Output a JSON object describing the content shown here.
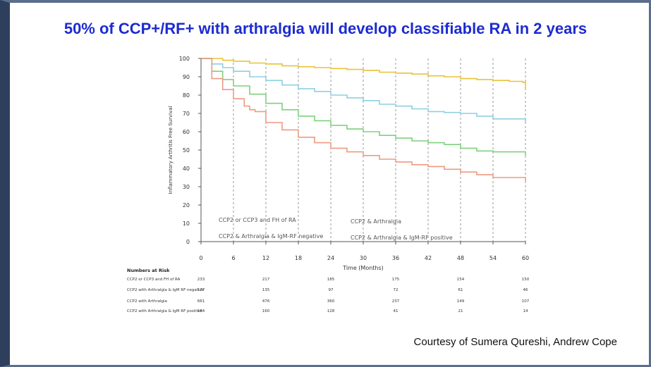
{
  "slide": {
    "title": "50% of CCP+/RF+ with arthralgia will develop classifiable RA in 2 years",
    "credit": "Courtesy of Sumera Qureshi, Andrew Cope"
  },
  "chart_data": {
    "type": "line",
    "title": "",
    "xlabel": "Time (Months)",
    "ylabel": "Inflammatory Arthritis Free Survival",
    "xlim": [
      0,
      60
    ],
    "ylim": [
      0,
      100
    ],
    "x_ticks": [
      0,
      6,
      12,
      18,
      24,
      30,
      36,
      42,
      48,
      54,
      60
    ],
    "x_tick_labels": [
      "0",
      "6",
      "12",
      "18",
      "24",
      "30",
      "36",
      "42",
      "48",
      "54",
      "60"
    ],
    "y_ticks": [
      0,
      10,
      20,
      30,
      40,
      50,
      60,
      70,
      80,
      90,
      100
    ],
    "y_tick_labels": [
      "0",
      "10",
      "20",
      "30",
      "40",
      "50",
      "60",
      "70",
      "80",
      "90",
      "100"
    ],
    "grid": "vertical dashed",
    "legend_position": "bottom-inside",
    "series": [
      {
        "name": "CCP2 or CCP3 and FH of RA",
        "color": "#e8c23a",
        "x": [
          0,
          2,
          4,
          6,
          9,
          12,
          15,
          18,
          21,
          24,
          27,
          30,
          33,
          36,
          39,
          42,
          45,
          48,
          51,
          54,
          57,
          59.5,
          60
        ],
        "y": [
          100,
          100,
          99,
          98.5,
          97.5,
          97,
          96,
          95.5,
          95,
          94.5,
          94,
          93.5,
          92.5,
          92,
          91.5,
          90.5,
          90,
          89,
          88.5,
          88,
          87.5,
          87,
          83
        ]
      },
      {
        "name": "CCP2 & Arthralgia",
        "color": "#8fcfe0",
        "x": [
          0,
          2,
          4,
          6,
          9,
          12,
          15,
          18,
          21,
          24,
          27,
          30,
          33,
          36,
          39,
          42,
          45,
          48,
          51,
          54,
          57,
          60
        ],
        "y": [
          100,
          97,
          95,
          93,
          90,
          88,
          85.5,
          83.5,
          82,
          80,
          78.5,
          77,
          75,
          74,
          72.5,
          71,
          70.5,
          70,
          68.5,
          67,
          67,
          65
        ]
      },
      {
        "name": "CCP2 & Arthralgia & IgM-RF negative",
        "color": "#7fd07f",
        "x": [
          0,
          2,
          4,
          6,
          9,
          12,
          15,
          18,
          21,
          24,
          27,
          30,
          33,
          36,
          39,
          42,
          45,
          48,
          51,
          54,
          57,
          60
        ],
        "y": [
          100,
          93,
          88.5,
          85,
          80.5,
          75.5,
          72,
          68.5,
          66,
          63.5,
          61.5,
          60,
          58,
          56.5,
          55,
          54,
          53,
          51,
          49.5,
          49,
          49,
          47
        ]
      },
      {
        "name": "CCP2 & Arthralgia & IgM-RF positive",
        "color": "#ee9a80",
        "x": [
          0,
          2,
          4,
          6,
          8,
          9,
          10,
          12,
          15,
          18,
          21,
          24,
          27,
          30,
          33,
          36,
          39,
          42,
          45,
          48,
          51,
          54,
          57,
          60
        ],
        "y": [
          100,
          89,
          83,
          78,
          74,
          72,
          71,
          65,
          61,
          57,
          54,
          51,
          49,
          47,
          45,
          43.5,
          42,
          41,
          39.5,
          38,
          36.5,
          35,
          35,
          33
        ]
      }
    ],
    "numbers_at_risk": {
      "heading": "Numbers at Risk",
      "rows": [
        {
          "label": "CCP2 or CCP3 and FH of RA",
          "values": [
            "233",
            "217",
            "185",
            "175",
            "154",
            "150"
          ]
        },
        {
          "label": "CCP2 with Arthralgia & IgM RF negative",
          "values": [
            "177",
            "135",
            "97",
            "72",
            "61",
            "46"
          ]
        },
        {
          "label": "CCP2 with Arthralgia",
          "values": [
            "661",
            "476",
            "360",
            "237",
            "149",
            "107"
          ]
        },
        {
          "label": "CCP2 with Arthralgia & IgM RF positive",
          "values": [
            "184",
            "160",
            "128",
            "41",
            "21",
            "14"
          ]
        }
      ],
      "x_at": [
        0,
        12,
        24,
        36,
        48,
        60
      ]
    }
  }
}
